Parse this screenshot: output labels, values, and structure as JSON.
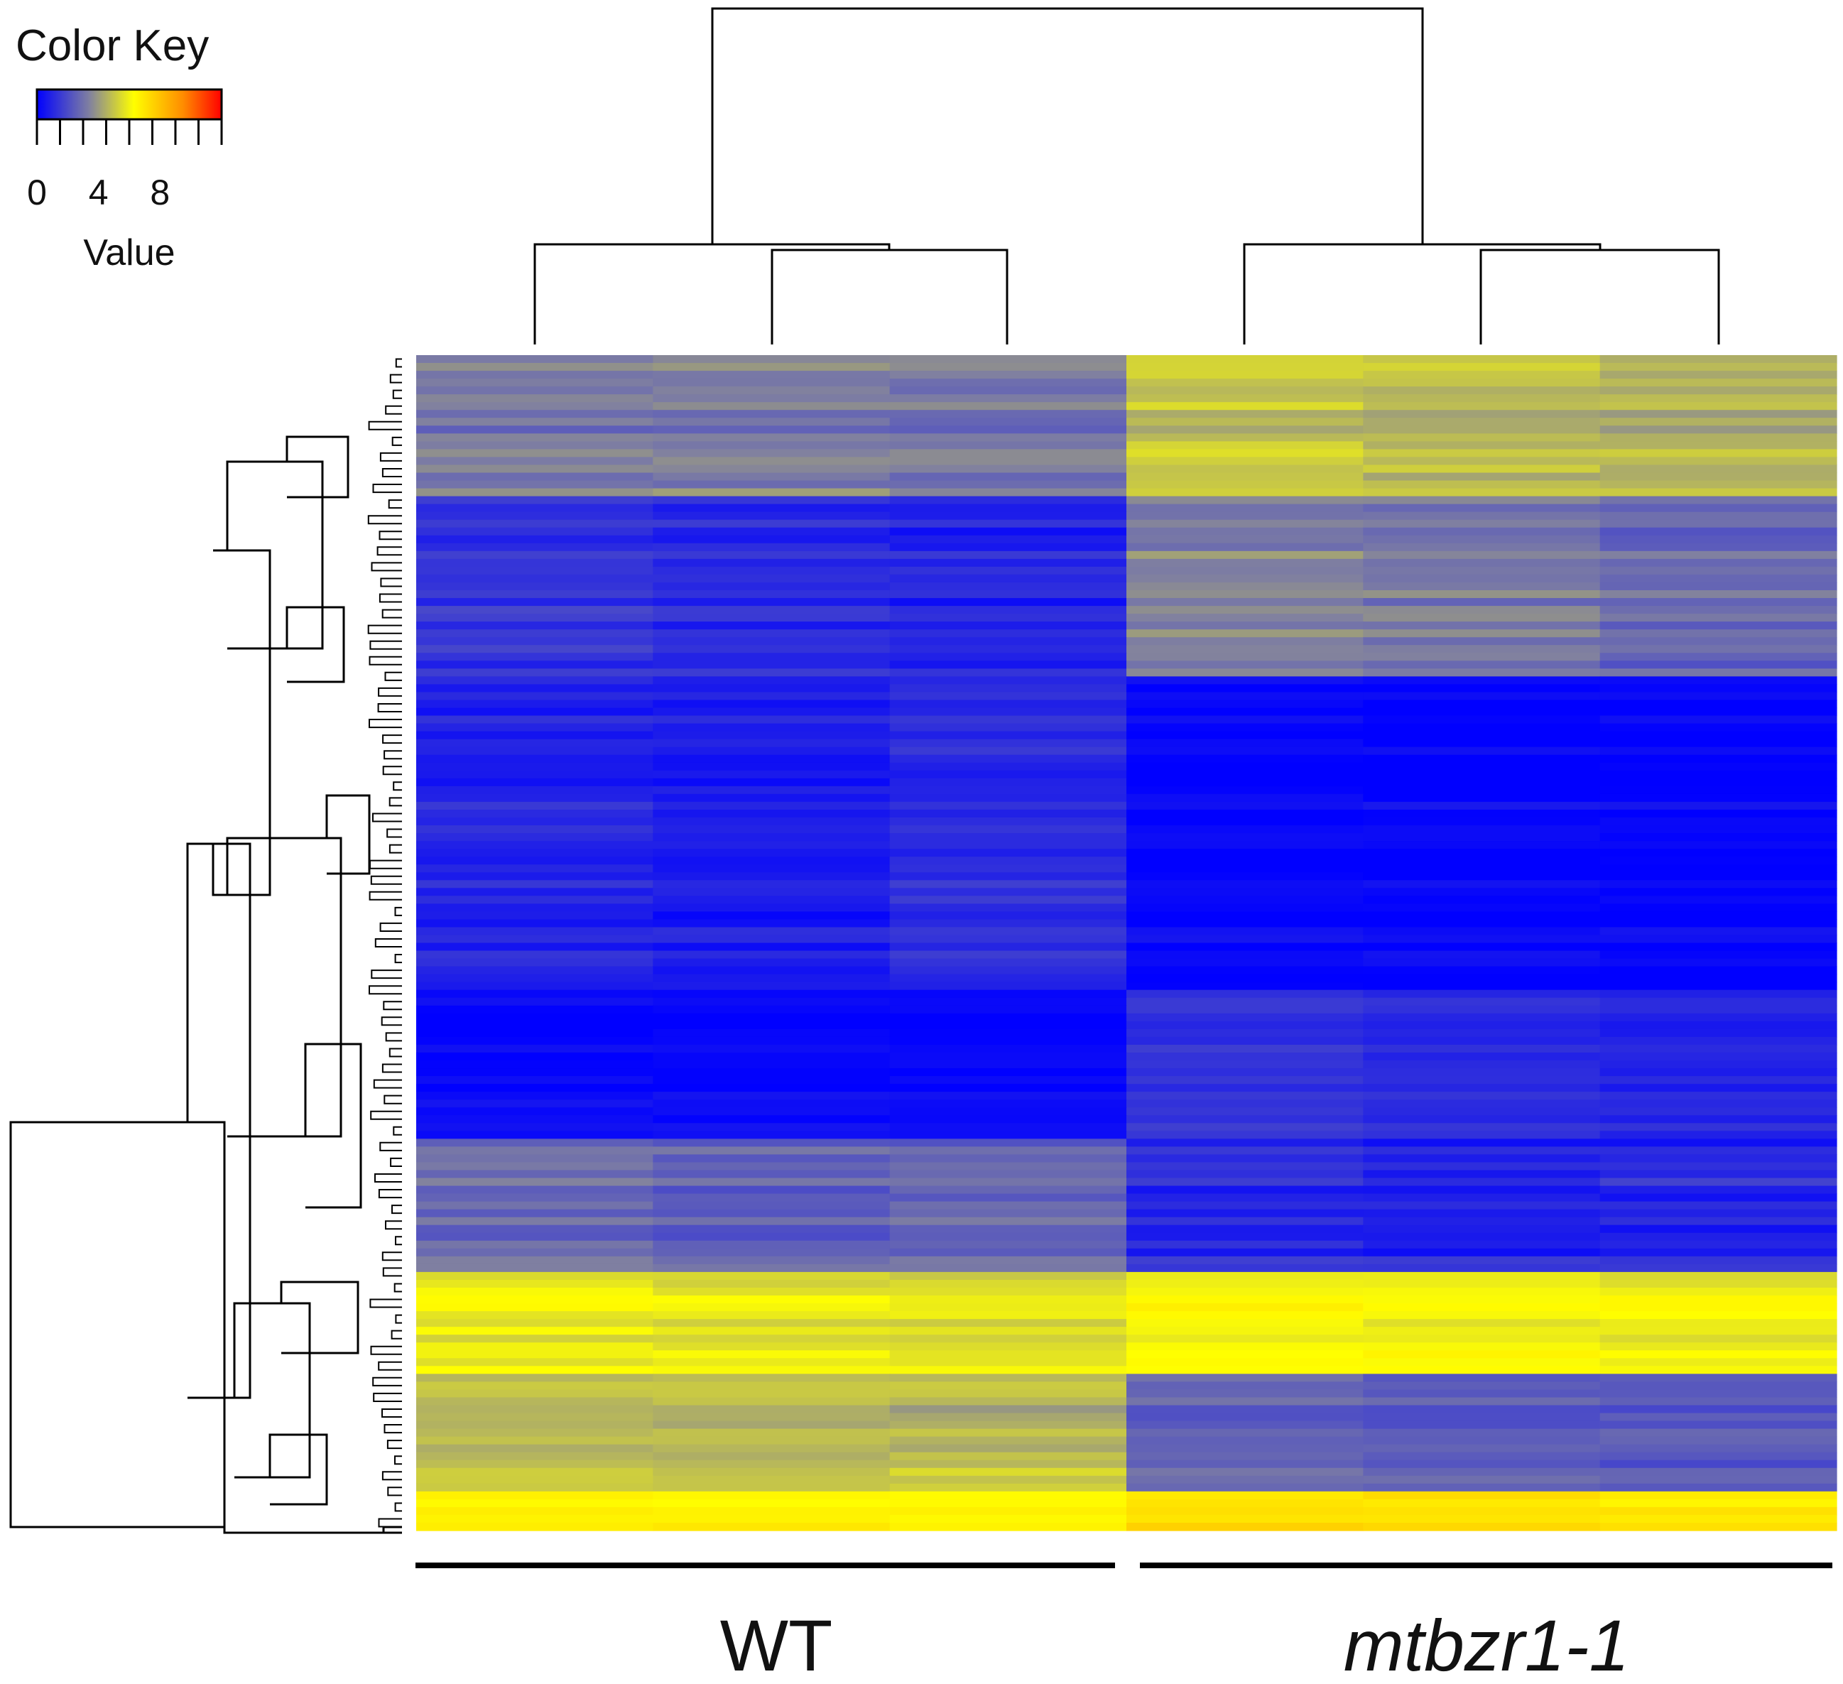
{
  "chart_data": {
    "type": "heatmap",
    "title": "",
    "color_key": {
      "title": "Color Key",
      "label": "Value",
      "range": [
        0,
        12
      ],
      "tick_labels": [
        {
          "value": 0,
          "text": "0"
        },
        {
          "value": 4,
          "text": "4"
        },
        {
          "value": 8,
          "text": "8"
        }
      ],
      "tick_marks": [
        0,
        1.5,
        3,
        4.5,
        6,
        7.5,
        9,
        10.5,
        12
      ],
      "colors": [
        "#0000ff",
        "#8080a0",
        "#ffff00",
        "#ff8c00",
        "#ff0000"
      ],
      "color_stops": [
        0,
        3.4,
        6.3,
        9.5,
        12
      ]
    },
    "groups": [
      {
        "label": "WT",
        "italic": false,
        "columns": [
          0,
          1,
          2
        ]
      },
      {
        "label": "mtbzr1-1",
        "italic": true,
        "columns": [
          3,
          4,
          5
        ]
      }
    ],
    "n_columns": 6,
    "n_rows_displayed": 150,
    "row_blocks": [
      {
        "name": "block-1",
        "rows": 18,
        "values": [
          3.2,
          3.3,
          3.1,
          5.0,
          4.7,
          4.5
        ],
        "noise": 0.7
      },
      {
        "name": "block-2",
        "rows": 23,
        "values": [
          1.4,
          1.2,
          1.0,
          3.4,
          3.2,
          2.8
        ],
        "noise": 0.6
      },
      {
        "name": "block-3",
        "rows": 40,
        "values": [
          1.0,
          0.8,
          1.2,
          0.2,
          0.1,
          0.1
        ],
        "noise": 0.5
      },
      {
        "name": "block-4",
        "rows": 19,
        "values": [
          0.1,
          0.1,
          0.1,
          1.2,
          1.0,
          0.9
        ],
        "noise": 0.4
      },
      {
        "name": "block-5",
        "rows": 17,
        "values": [
          3.0,
          2.7,
          2.9,
          1.2,
          1.0,
          1.1
        ],
        "noise": 0.6
      },
      {
        "name": "block-6",
        "rows": 13,
        "values": [
          5.8,
          5.6,
          5.6,
          6.2,
          6.0,
          5.9
        ],
        "noise": 0.6
      },
      {
        "name": "block-7",
        "rows": 15,
        "values": [
          4.8,
          4.6,
          4.7,
          2.6,
          2.4,
          2.3
        ],
        "noise": 0.7
      },
      {
        "name": "block-8",
        "rows": 5,
        "values": [
          6.6,
          6.6,
          6.6,
          7.2,
          7.2,
          7.0
        ],
        "noise": 0.4
      }
    ],
    "column_dendrogram": [
      {
        "join": [
          1,
          2
        ],
        "height": 1.0
      },
      {
        "join": [
          0,
          "1-2"
        ],
        "height": 1.1
      },
      {
        "join": [
          4,
          5
        ],
        "height": 1.0
      },
      {
        "join": [
          3,
          "4-5"
        ],
        "height": 1.1
      },
      {
        "join": [
          "WT",
          "mtbzr1-1"
        ],
        "height": 3.5
      }
    ],
    "row_dendrogram": "clustered",
    "xlabel": "",
    "ylabel": ""
  }
}
